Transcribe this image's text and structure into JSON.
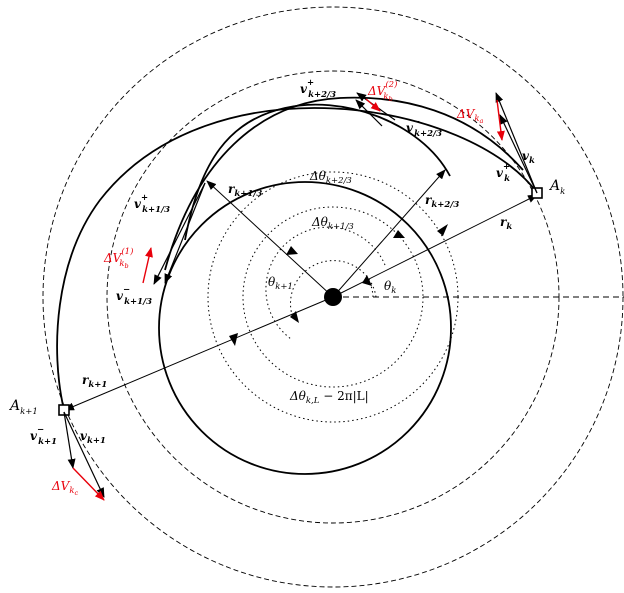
{
  "colors": {
    "line": "#000000",
    "accent_red": "#e8000b",
    "background": "#ffffff"
  },
  "labels": {
    "A_k": "A",
    "A_k_sub": "k",
    "A_k1": "A",
    "A_k1_sub": "k+1",
    "r_k": "r",
    "r_k_sub": "k",
    "r_k1": "r",
    "r_k1_sub": "k+1",
    "r_k13": "r",
    "r_k13_sub": "k+1/3",
    "r_k23": "r",
    "r_k23_sub": "k+2/3",
    "theta_k": "θ",
    "theta_k_sub": "k",
    "theta_k1": "θ",
    "theta_k1_sub": "k+1",
    "dtheta_k23": "Δθ",
    "dtheta_k23_sub": "k+2/3",
    "dtheta_k13": "Δθ",
    "dtheta_k13_sub": "k+1/3",
    "dtheta_kL": "Δθ",
    "dtheta_kL_sub": "k,L",
    "dtheta_kL_rest": " − 2π|L|",
    "v_k": "v",
    "v_k_sub": "k",
    "v_k_plus": "v",
    "v_k_plus_sub": "k",
    "v_k_plus_sup": "+",
    "v_k1": "v",
    "v_k1_sub": "k+1",
    "v_k1_minus": "v",
    "v_k1_minus_sub": "k+1",
    "v_k1_minus_sup": "−",
    "v_k23_plus": "v",
    "v_k23_plus_sub": "k+2/3",
    "v_k23_plus_sup": "+",
    "v_k23_minus": "v",
    "v_k23_minus_sub": "k+2/3",
    "v_k23_minus_sup": "−",
    "v_k13_plus": "v",
    "v_k13_plus_sub": "k+1/3",
    "v_k13_plus_sup": "+",
    "v_k13_minus": "v",
    "v_k13_minus_sub": "k+1/3",
    "v_k13_minus_sup": "−",
    "dV_ka": "ΔV",
    "dV_ka_sub": "k",
    "dV_ka_subsub": "a",
    "dV_kb1": "ΔV",
    "dV_kb1_sub": "k",
    "dV_kb1_subsub": "b",
    "dV_kb1_sup": "(1)",
    "dV_kb2": "ΔV",
    "dV_kb2_sub": "k",
    "dV_kb2_subsub": "b",
    "dV_kb2_sup": "(2)",
    "dV_kc": "ΔV",
    "dV_kc_sub": "k",
    "dV_kc_subsub": "c"
  }
}
